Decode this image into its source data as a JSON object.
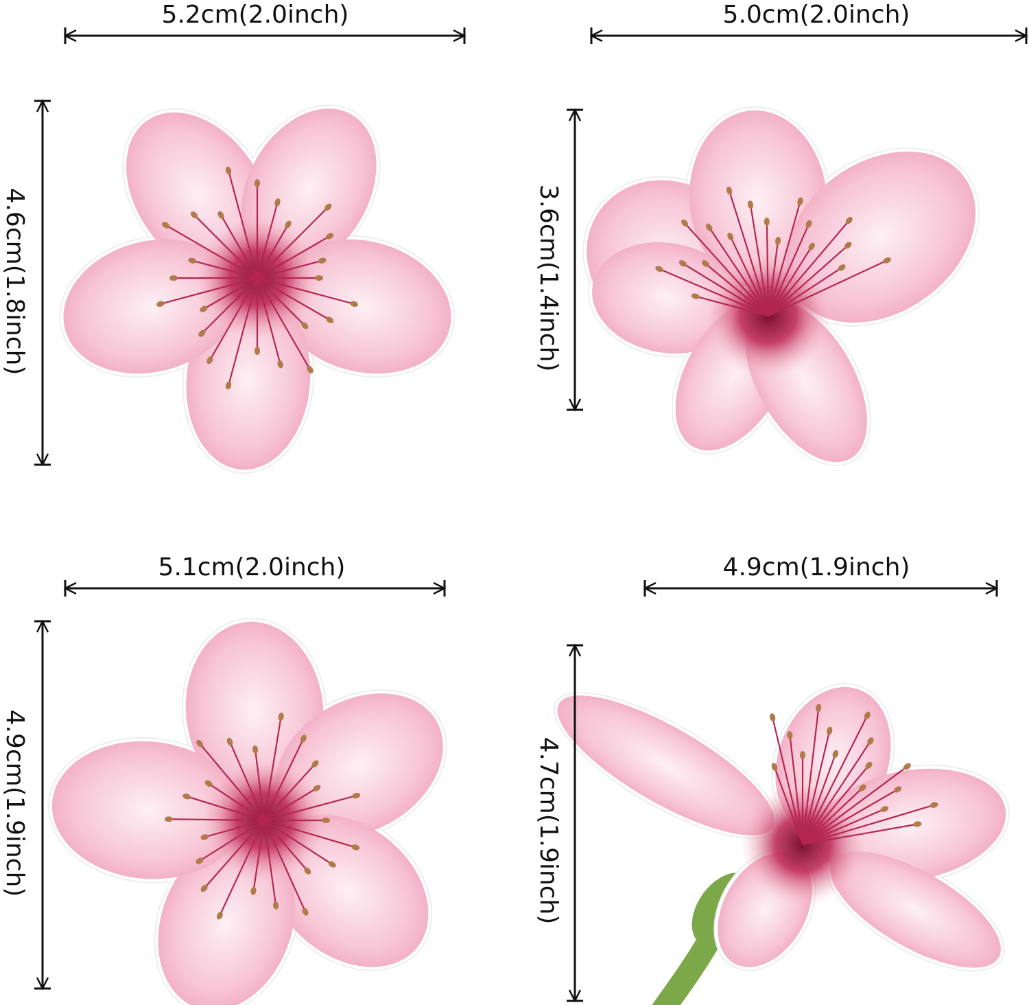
{
  "products": [
    {
      "name": "flower-1",
      "width_label": "5.2cm(2.0inch)",
      "height_label": "4.6cm(1.8inch)"
    },
    {
      "name": "flower-2",
      "width_label": "5.0cm(2.0inch)",
      "height_label": "3.6cm(1.4inch)"
    },
    {
      "name": "flower-3",
      "width_label": "5.1cm(2.0inch)",
      "height_label": "4.9cm(1.9inch)"
    },
    {
      "name": "flower-4",
      "width_label": "4.9cm(1.9inch)",
      "height_label": "4.7cm(1.9inch)"
    }
  ],
  "colors": {
    "petal_light": "#fbe3ec",
    "petal_mid": "#f2a9c1",
    "center": "#b3264f",
    "anther": "#b07a4a",
    "stem": "#7da84a",
    "arrow": "#111111"
  }
}
